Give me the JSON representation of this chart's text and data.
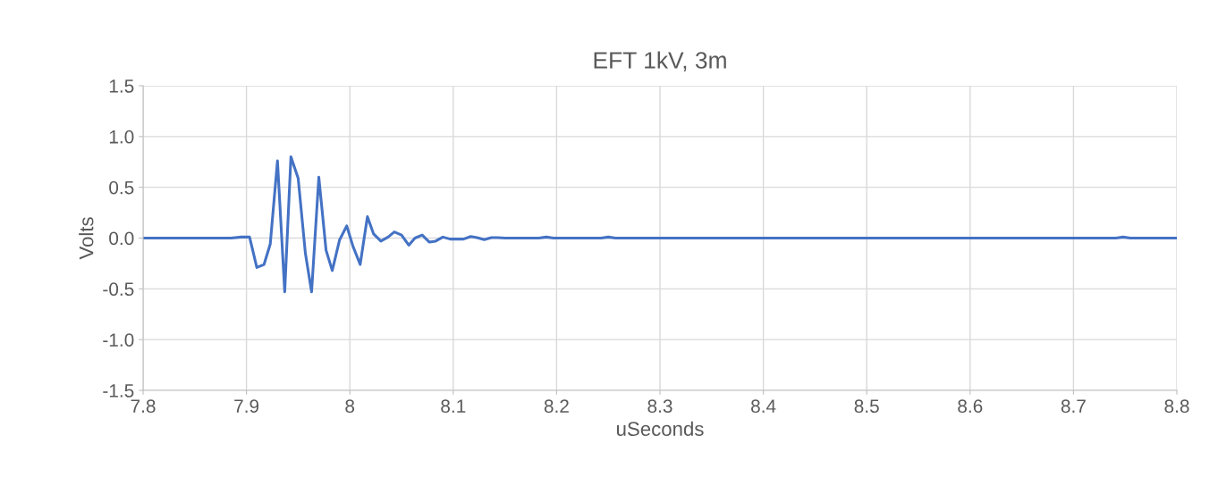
{
  "chart_data": {
    "type": "line",
    "title": "EFT 1kV, 3m",
    "xlabel": "uSeconds",
    "ylabel": "Volts",
    "x": [
      7.8,
      7.885,
      7.895,
      7.903,
      7.91,
      7.917,
      7.923,
      7.93,
      7.937,
      7.943,
      7.95,
      7.957,
      7.963,
      7.97,
      7.977,
      7.983,
      7.99,
      7.997,
      8.003,
      8.01,
      8.017,
      8.023,
      8.03,
      8.037,
      8.043,
      8.05,
      8.057,
      8.063,
      8.07,
      8.077,
      8.083,
      8.09,
      8.097,
      8.103,
      8.11,
      8.117,
      8.123,
      8.13,
      8.137,
      8.143,
      8.15,
      8.183,
      8.19,
      8.197,
      8.243,
      8.25,
      8.257,
      8.741,
      8.748,
      8.755,
      8.8
    ],
    "series": [
      {
        "color": "#4472c4",
        "values": [
          0,
          0,
          0.01,
          0.01,
          -0.29,
          -0.26,
          -0.06,
          0.76,
          -0.53,
          0.8,
          0.59,
          -0.15,
          -0.53,
          0.6,
          -0.12,
          -0.32,
          -0.02,
          0.12,
          -0.08,
          -0.26,
          0.21,
          0.04,
          -0.03,
          0.01,
          0.06,
          0.03,
          -0.07,
          0,
          0.03,
          -0.04,
          -0.03,
          0.01,
          -0.01,
          -0.01,
          -0.01,
          0.015,
          0.005,
          -0.015,
          0.005,
          0.005,
          0,
          0,
          0.01,
          0,
          0,
          0.01,
          0,
          0,
          0.01,
          0,
          0
        ]
      }
    ],
    "xlim": [
      7.8,
      8.8
    ],
    "xticks": [
      7.8,
      7.9,
      8,
      8.1,
      8.2,
      8.3,
      8.4,
      8.5,
      8.6,
      8.7,
      8.8
    ],
    "ylim": [
      -1.5,
      1.5
    ],
    "yticks": [
      {
        "value": -1.5,
        "label": "-1.5"
      },
      {
        "value": -1.0,
        "label": "-1.0"
      },
      {
        "value": -0.5,
        "label": "-0.5"
      },
      {
        "value": 0,
        "label": "0.0"
      },
      {
        "value": 0.5,
        "label": "0.5"
      },
      {
        "value": 1.0,
        "label": "1.0"
      },
      {
        "value": 1.5,
        "label": "1.5"
      }
    ],
    "grid": true,
    "marker": "none",
    "line_style": "solid"
  }
}
